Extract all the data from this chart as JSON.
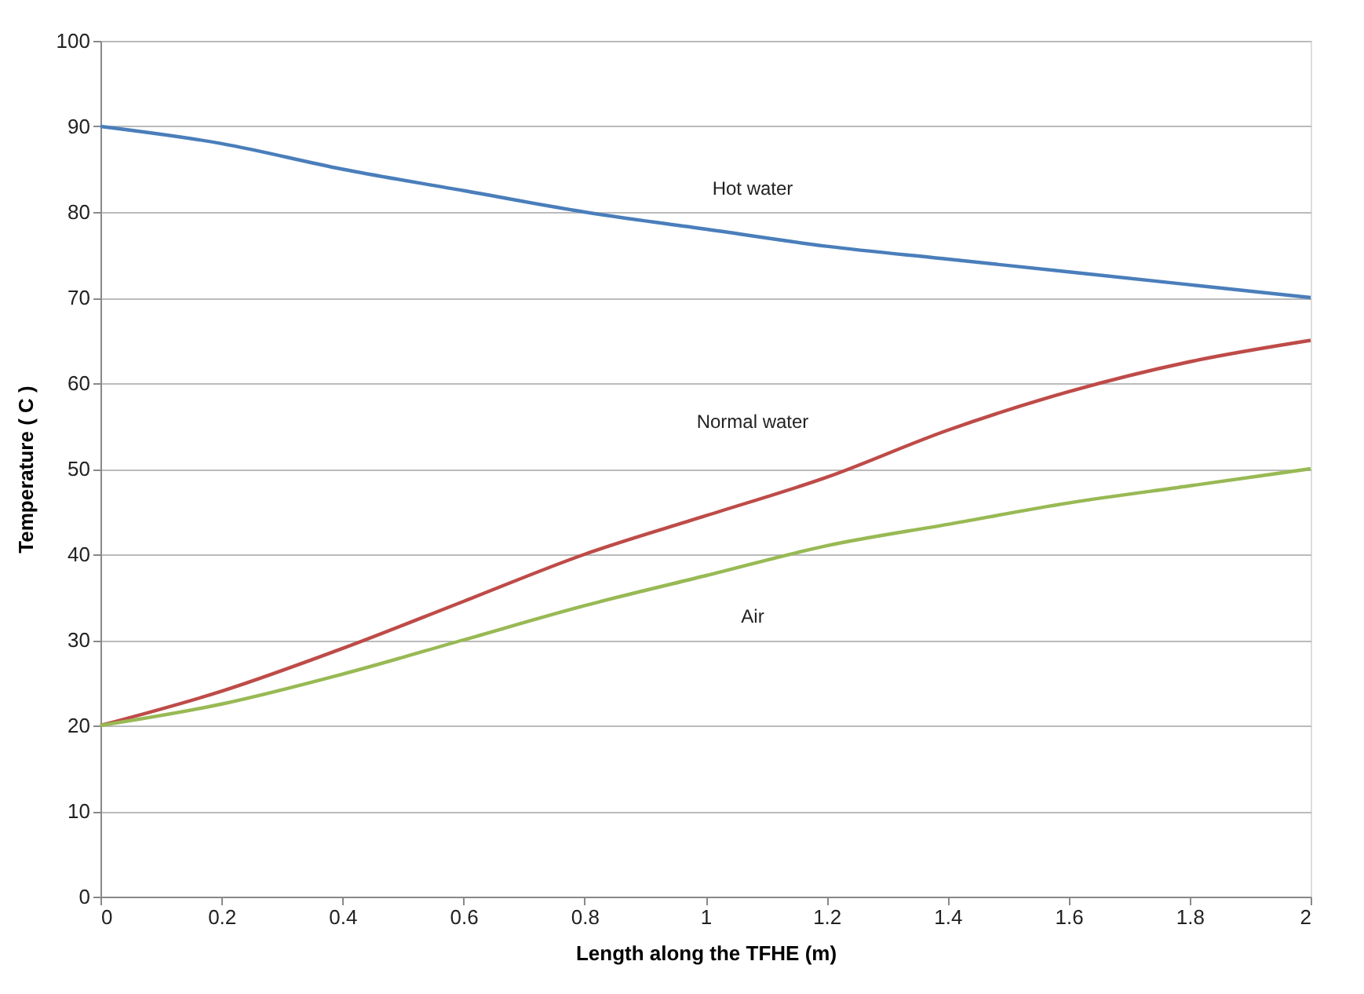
{
  "chart_data": {
    "type": "line",
    "xlabel": "Length along the TFHE (m)",
    "ylabel": "Temperature ( C )",
    "x": [
      0,
      0.2,
      0.4,
      0.6,
      0.8,
      1.0,
      1.2,
      1.4,
      1.6,
      1.8,
      2.0
    ],
    "series": [
      {
        "name": "Hot water",
        "color": "#4a7ebb",
        "values": [
          90,
          88,
          85,
          82.5,
          80,
          78,
          76,
          74.5,
          73,
          71.5,
          70
        ]
      },
      {
        "name": "Normal water",
        "color": "#be4b48",
        "values": [
          20,
          24,
          29,
          34.5,
          40,
          44.5,
          49,
          54.5,
          59,
          62.5,
          65
        ]
      },
      {
        "name": "Air",
        "color": "#98b954",
        "values": [
          20,
          22.5,
          26,
          30,
          34,
          37.5,
          41,
          43.5,
          46,
          48,
          50
        ]
      }
    ],
    "xlim": [
      0,
      2
    ],
    "xticks": [
      0,
      0.2,
      0.4,
      0.6,
      0.8,
      1,
      1.2,
      1.4,
      1.6,
      1.8,
      2
    ],
    "ylim": [
      0,
      100
    ],
    "yticks": [
      0,
      10,
      20,
      30,
      40,
      50,
      60,
      70,
      80,
      90,
      100
    ],
    "grid": "y",
    "legend": false,
    "marker": "none",
    "line_style": "solid"
  }
}
